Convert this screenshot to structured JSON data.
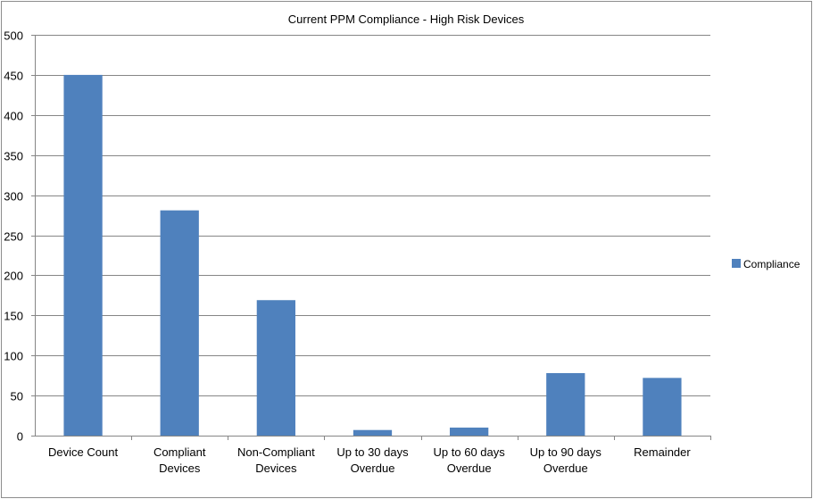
{
  "chart_data": {
    "type": "bar",
    "title": "Current PPM Compliance - High Risk Devices",
    "xlabel": "",
    "ylabel": "",
    "categories": [
      [
        "Device Count"
      ],
      [
        "Compliant",
        "Devices"
      ],
      [
        "Non-Compliant",
        "Devices"
      ],
      [
        "Up to 30 days",
        "Overdue"
      ],
      [
        "Up to 60 days",
        "Overdue"
      ],
      [
        "Up to 90 days",
        "Overdue"
      ],
      [
        "Remainder"
      ]
    ],
    "series": [
      {
        "name": "Compliance",
        "color": "#4f81bd",
        "values": [
          450,
          281,
          169,
          7,
          10,
          78,
          72
        ]
      }
    ],
    "ylim": [
      0,
      500
    ],
    "ytick_step": 50,
    "grid": true,
    "legend_position": "right"
  }
}
